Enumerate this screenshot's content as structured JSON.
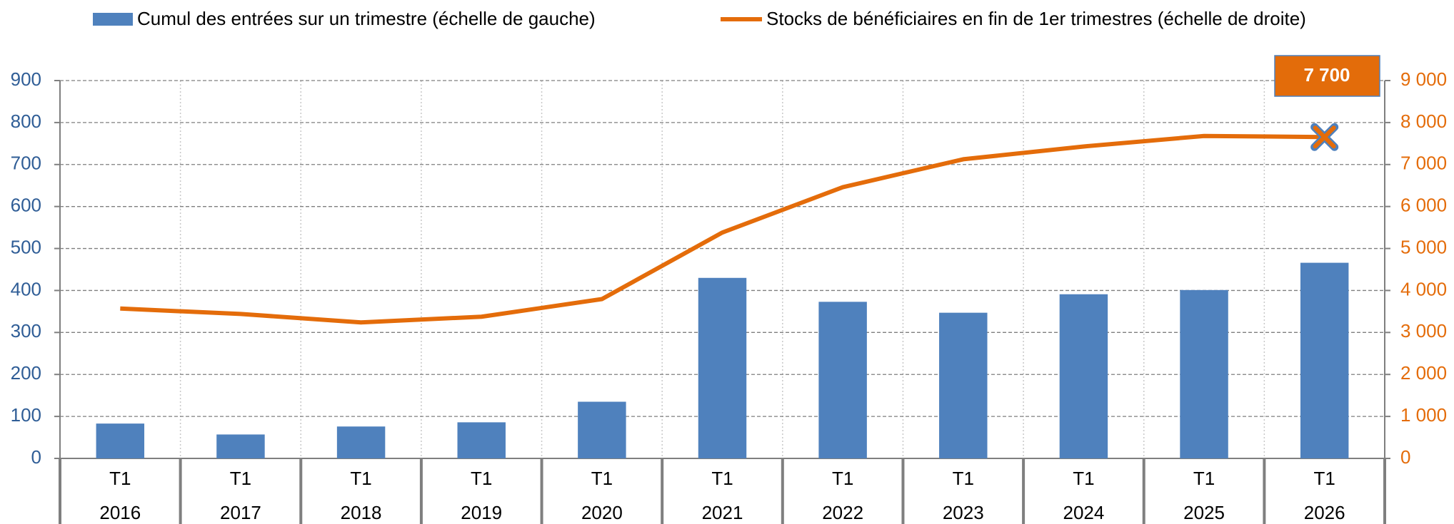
{
  "chart_data": {
    "type": "bar_line",
    "quarters": [
      "T1",
      "T1",
      "T1",
      "T1",
      "T1",
      "T1",
      "T1",
      "T1",
      "T1",
      "T1",
      "T1"
    ],
    "categories": [
      "2016",
      "2017",
      "2018",
      "2019",
      "2020",
      "2021",
      "2022",
      "2023",
      "2024",
      "2025",
      "2026"
    ],
    "series": [
      {
        "name": "Cumul des entrées sur un trimestre (échelle de gauche)",
        "type": "bar",
        "color": "#4f81bd",
        "values": [
          83,
          57,
          76,
          86,
          135,
          430,
          373,
          347,
          391,
          401,
          466
        ]
      },
      {
        "name": "Stocks de bénéficiaires en fin de 1er trimestres (échelle de droite)",
        "type": "line",
        "axis": "y2",
        "color": "#e46c0a",
        "values": [
          3570,
          3440,
          3240,
          3375,
          3795,
          5380,
          6460,
          7125,
          7430,
          7680,
          7655
        ]
      }
    ],
    "ylim": [
      0,
      900
    ],
    "yticks": [
      0,
      100,
      200,
      300,
      400,
      500,
      600,
      700,
      800,
      900
    ],
    "y2lim": [
      0,
      9000
    ],
    "y2ticks": [
      0,
      {
        "value": 1000,
        "label": "1 000"
      },
      {
        "value": 2000,
        "label": "2 000"
      },
      {
        "value": 3000,
        "label": "3 000"
      },
      {
        "value": 4000,
        "label": "4 000"
      },
      {
        "value": 5000,
        "label": "5 000"
      },
      {
        "value": 6000,
        "label": "6 000"
      },
      {
        "value": 7000,
        "label": "7 000"
      },
      {
        "value": 8000,
        "label": "8 000"
      },
      {
        "value": 9000,
        "label": "9 000"
      }
    ],
    "annotation": "7 700",
    "grid": true,
    "legend": "top"
  }
}
